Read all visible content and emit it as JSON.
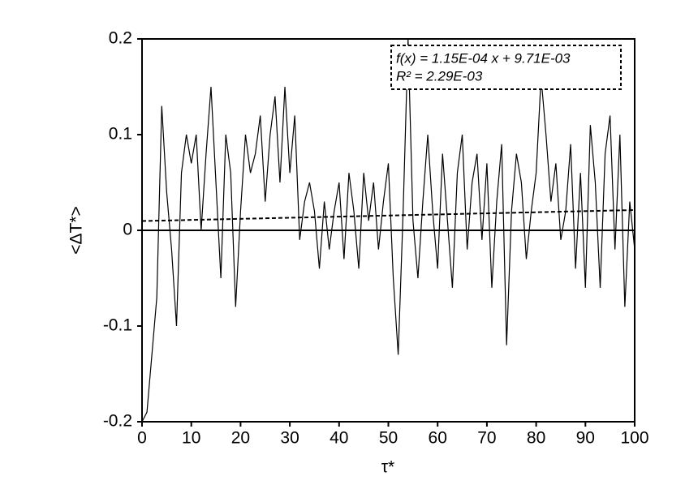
{
  "chart_data": {
    "type": "line",
    "x_label": "τ*",
    "y_label": "<ΔT*>",
    "annotations": [
      "f(x) = 1.15E-04 x + 9.71E-03",
      "R² = 2.29E-03"
    ],
    "xlim": [
      0,
      100
    ],
    "ylim": [
      -0.2,
      0.2
    ],
    "xticks": [
      0,
      10,
      20,
      30,
      40,
      50,
      60,
      70,
      80,
      90,
      100
    ],
    "yticks": [
      -0.2,
      -0.1,
      0,
      0.1,
      0.2
    ],
    "zero_line": true,
    "x": [
      0,
      1,
      2,
      3,
      4,
      5,
      6,
      7,
      8,
      9,
      10,
      11,
      12,
      13,
      14,
      15,
      16,
      17,
      18,
      19,
      20,
      21,
      22,
      23,
      24,
      25,
      26,
      27,
      28,
      29,
      30,
      31,
      32,
      33,
      34,
      35,
      36,
      37,
      38,
      39,
      40,
      41,
      42,
      43,
      44,
      45,
      46,
      47,
      48,
      49,
      50,
      51,
      52,
      53,
      54,
      55,
      56,
      57,
      58,
      59,
      60,
      61,
      62,
      63,
      64,
      65,
      66,
      67,
      68,
      69,
      70,
      71,
      72,
      73,
      74,
      75,
      76,
      77,
      78,
      79,
      80,
      81,
      82,
      83,
      84,
      85,
      86,
      87,
      88,
      89,
      90,
      91,
      92,
      93,
      94,
      95,
      96,
      97,
      98,
      99,
      100
    ],
    "series": [
      {
        "color": "#000000",
        "dashed": false,
        "values": [
          -0.2,
          -0.19,
          -0.13,
          -0.07,
          0.13,
          0.04,
          -0.02,
          -0.1,
          0.06,
          0.1,
          0.07,
          0.1,
          0.0,
          0.08,
          0.15,
          0.05,
          -0.05,
          0.1,
          0.06,
          -0.08,
          0.02,
          0.1,
          0.06,
          0.08,
          0.12,
          0.03,
          0.1,
          0.14,
          0.05,
          0.15,
          0.06,
          0.12,
          -0.01,
          0.03,
          0.05,
          0.02,
          -0.04,
          0.03,
          -0.02,
          0.02,
          0.05,
          -0.03,
          0.06,
          0.02,
          -0.04,
          0.06,
          0.01,
          0.05,
          -0.02,
          0.03,
          0.07,
          -0.05,
          -0.13,
          0.02,
          0.2,
          0.01,
          -0.05,
          0.03,
          0.1,
          0.02,
          -0.04,
          0.08,
          0.01,
          -0.06,
          0.06,
          0.1,
          -0.02,
          0.05,
          0.08,
          -0.01,
          0.07,
          -0.06,
          0.03,
          0.09,
          -0.12,
          0.02,
          0.08,
          0.05,
          -0.03,
          0.02,
          0.06,
          0.16,
          0.1,
          0.03,
          0.07,
          -0.01,
          0.02,
          0.09,
          -0.04,
          0.06,
          -0.06,
          0.11,
          0.05,
          -0.06,
          0.08,
          0.12,
          -0.02,
          0.1,
          -0.08,
          0.03,
          -0.02
        ]
      },
      {
        "color": "#000000",
        "dashed": true,
        "x": [
          0,
          100
        ],
        "values": [
          0.00971,
          0.02121
        ]
      }
    ]
  }
}
